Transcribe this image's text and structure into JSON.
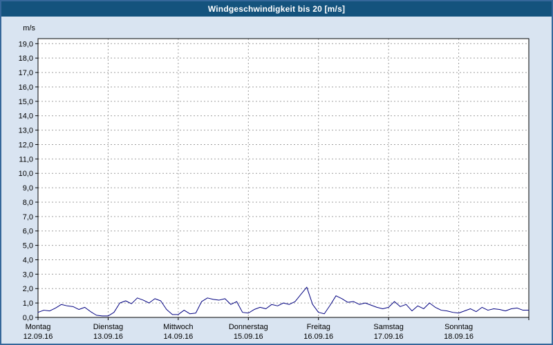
{
  "title": {
    "text": "Windgeschwindigkeit bis 20 [m/s]"
  },
  "colors": {
    "frame_bg": "#d9e4f1",
    "frame_border": "#35679a",
    "titlebar_bg": "#14537d",
    "titlebar_text": "#ffffff",
    "plot_bg": "#ffffff",
    "grid": "#9e9e9e",
    "axis": "#000000",
    "line": "#000080"
  },
  "chart_data": {
    "type": "line",
    "title": "Windgeschwindigkeit bis 20 [m/s]",
    "ylabel": "m/s",
    "ylim": [
      0,
      19.35
    ],
    "grid": true,
    "legend": false,
    "y_tick_labels": [
      "0,0",
      "1,0",
      "2,0",
      "3,0",
      "4,0",
      "5,0",
      "6,0",
      "7,0",
      "8,0",
      "9,0",
      "10,0",
      "11,0",
      "12,0",
      "13,0",
      "14,0",
      "15,0",
      "16,0",
      "17,0",
      "18,0",
      "19,0"
    ],
    "x_days": [
      {
        "day": "Montag",
        "date": "12.09.16"
      },
      {
        "day": "Dienstag",
        "date": "13.09.16"
      },
      {
        "day": "Mittwoch",
        "date": "14.09.16"
      },
      {
        "day": "Donnerstag",
        "date": "15.09.16"
      },
      {
        "day": "Freitag",
        "date": "16.09.16"
      },
      {
        "day": "Samstag",
        "date": "17.09.16"
      },
      {
        "day": "Sonntag",
        "date": "18.09.16"
      }
    ],
    "series": [
      {
        "name": "Windgeschwindigkeit",
        "unit": "m/s",
        "color": "#000080",
        "interval_hours": 2,
        "values": [
          0.35,
          0.5,
          0.45,
          0.65,
          0.9,
          0.8,
          0.75,
          0.55,
          0.7,
          0.4,
          0.15,
          0.1,
          0.1,
          0.35,
          1.0,
          1.15,
          0.95,
          1.35,
          1.2,
          1.0,
          1.3,
          1.15,
          0.55,
          0.2,
          0.2,
          0.5,
          0.25,
          0.3,
          1.1,
          1.35,
          1.25,
          1.2,
          1.3,
          0.9,
          1.1,
          0.35,
          0.3,
          0.55,
          0.7,
          0.6,
          0.9,
          0.8,
          1.0,
          0.9,
          1.1,
          1.6,
          2.1,
          0.9,
          0.35,
          0.25,
          0.85,
          1.5,
          1.3,
          1.05,
          1.1,
          0.9,
          1.0,
          0.85,
          0.7,
          0.6,
          0.7,
          1.1,
          0.75,
          0.9,
          0.45,
          0.8,
          0.6,
          1.0,
          0.7,
          0.5,
          0.45,
          0.35,
          0.3,
          0.45,
          0.6,
          0.4,
          0.7,
          0.5,
          0.6,
          0.55,
          0.45,
          0.6,
          0.65,
          0.5,
          0.5
        ]
      }
    ]
  }
}
